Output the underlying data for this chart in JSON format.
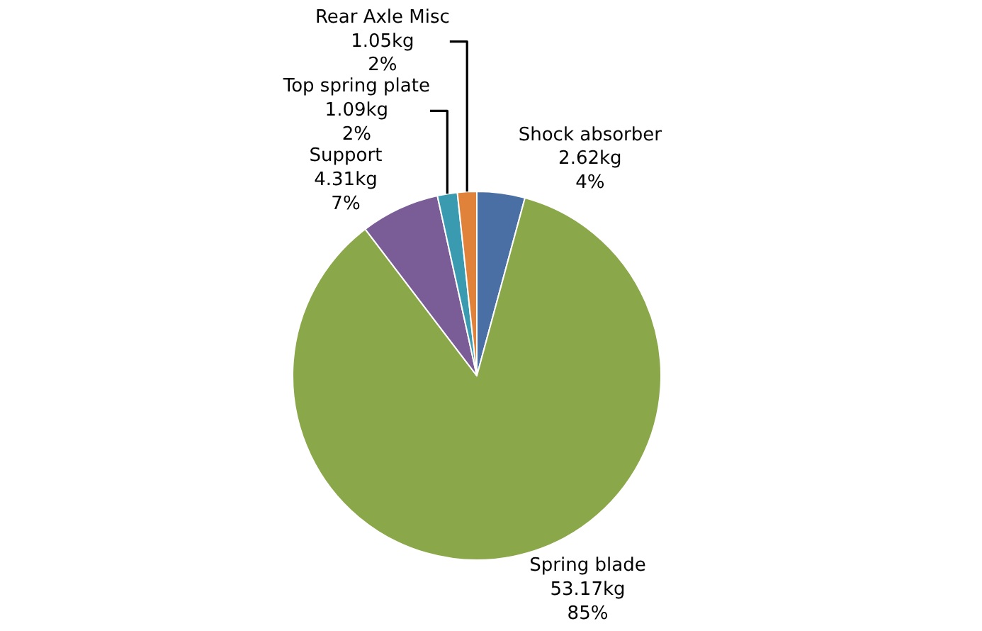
{
  "chart_data": {
    "type": "pie",
    "categories": [
      "Shock absorber",
      "Spring blade",
      "Support",
      "Top spring plate",
      "Rear Axle Misc"
    ],
    "values": [
      2.62,
      53.17,
      4.31,
      1.09,
      1.05
    ],
    "value_labels": [
      "2.62kg\n4%",
      "53.17kg\n85%",
      "4.31kg\n7%",
      "1.09kg\n2%",
      "1.05kg\n2%"
    ],
    "colors": [
      "#4a6fa5",
      "#8aa84a",
      "#7a5c96",
      "#3a9bb0",
      "#e0823a"
    ],
    "legend": false
  }
}
